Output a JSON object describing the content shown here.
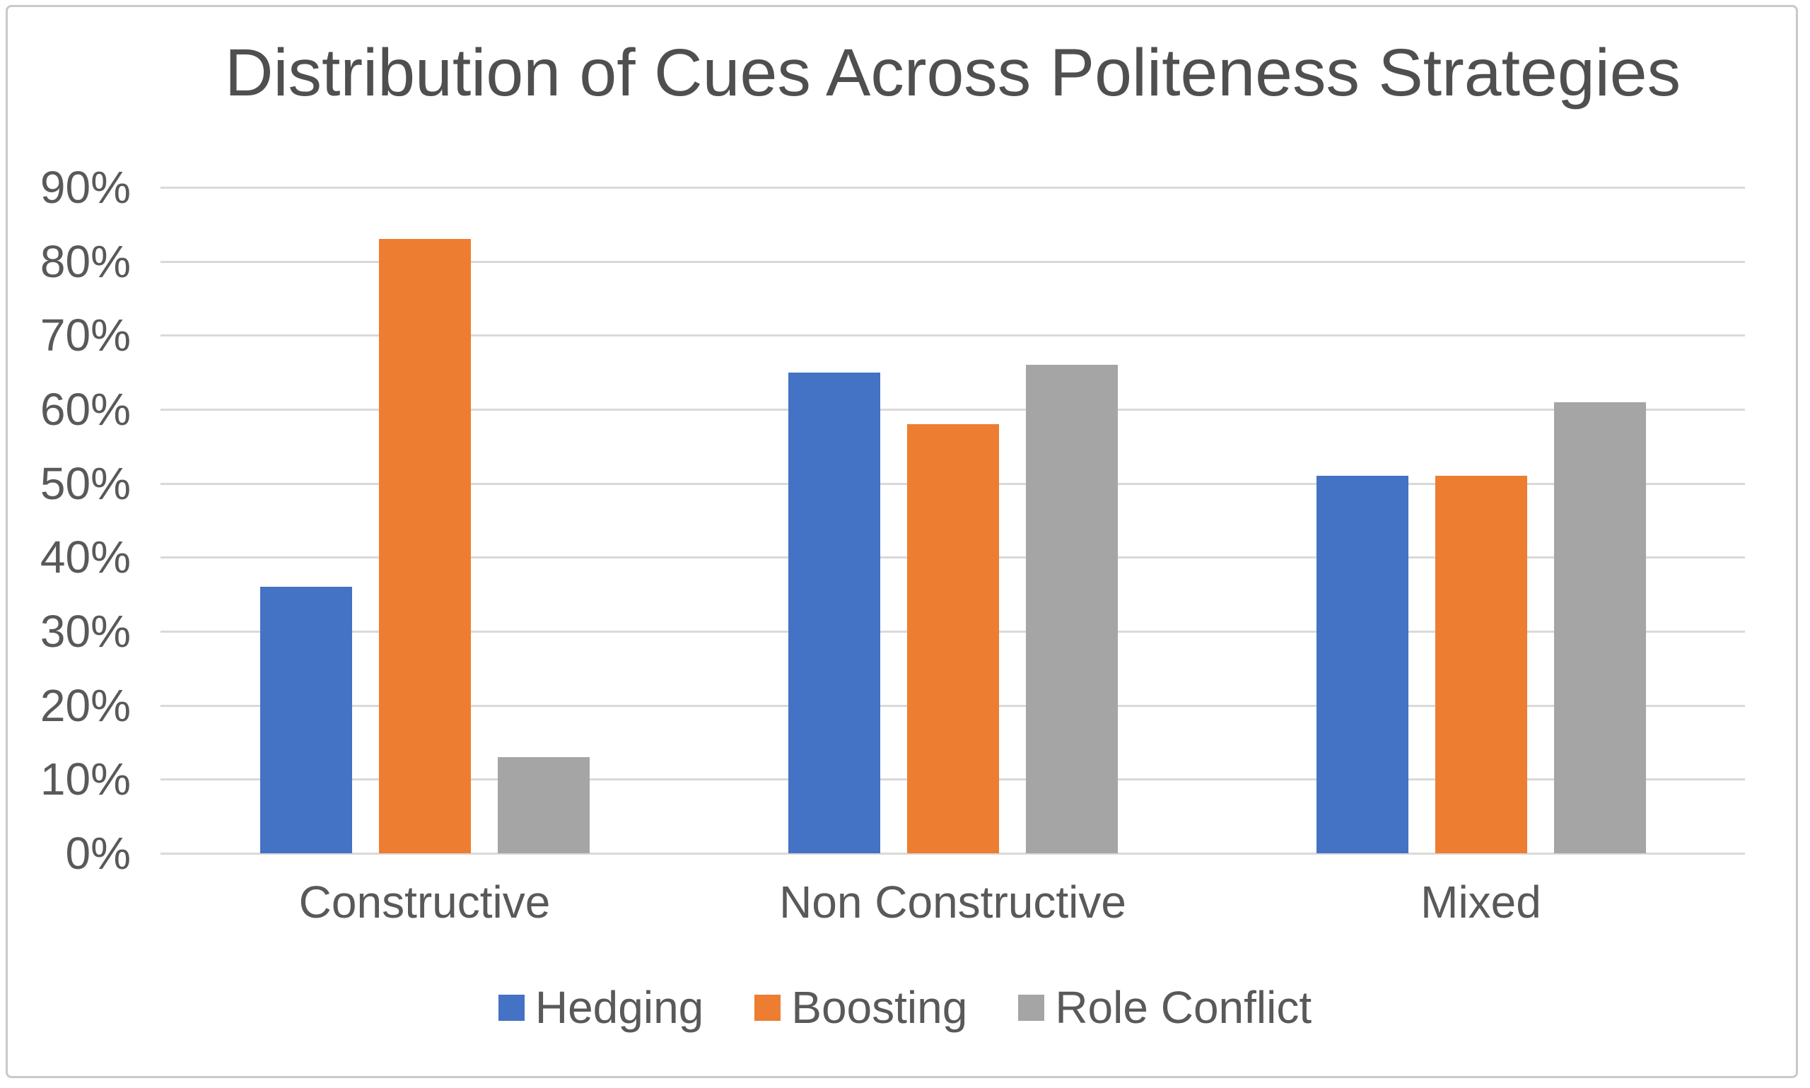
{
  "page": {
    "background": "#ffffff",
    "border_color": "#c9c9c9"
  },
  "chart_data": {
    "type": "bar",
    "title": "Distribution of Cues Across Politeness Strategies",
    "categories": [
      "Constructive",
      "Non Constructive",
      "Mixed"
    ],
    "series": [
      {
        "name": "Hedging",
        "color": "#4472C4",
        "values": [
          36,
          65,
          51
        ]
      },
      {
        "name": "Boosting",
        "color": "#ED7D31",
        "values": [
          83,
          58,
          51
        ]
      },
      {
        "name": "Role Conflict",
        "color": "#A5A5A5",
        "values": [
          13,
          66,
          61
        ]
      }
    ],
    "unit": "%",
    "ylim": [
      0,
      90
    ],
    "y_ticks": [
      "90%",
      "80%",
      "70%",
      "60%",
      "50%",
      "40%",
      "30%",
      "20%",
      "10%",
      "0%"
    ],
    "grid": true,
    "legend_position": "bottom",
    "colors": {
      "gridline": "#D9D9D9",
      "axis_text": "#595959",
      "title_text": "#4F4F4F"
    }
  }
}
